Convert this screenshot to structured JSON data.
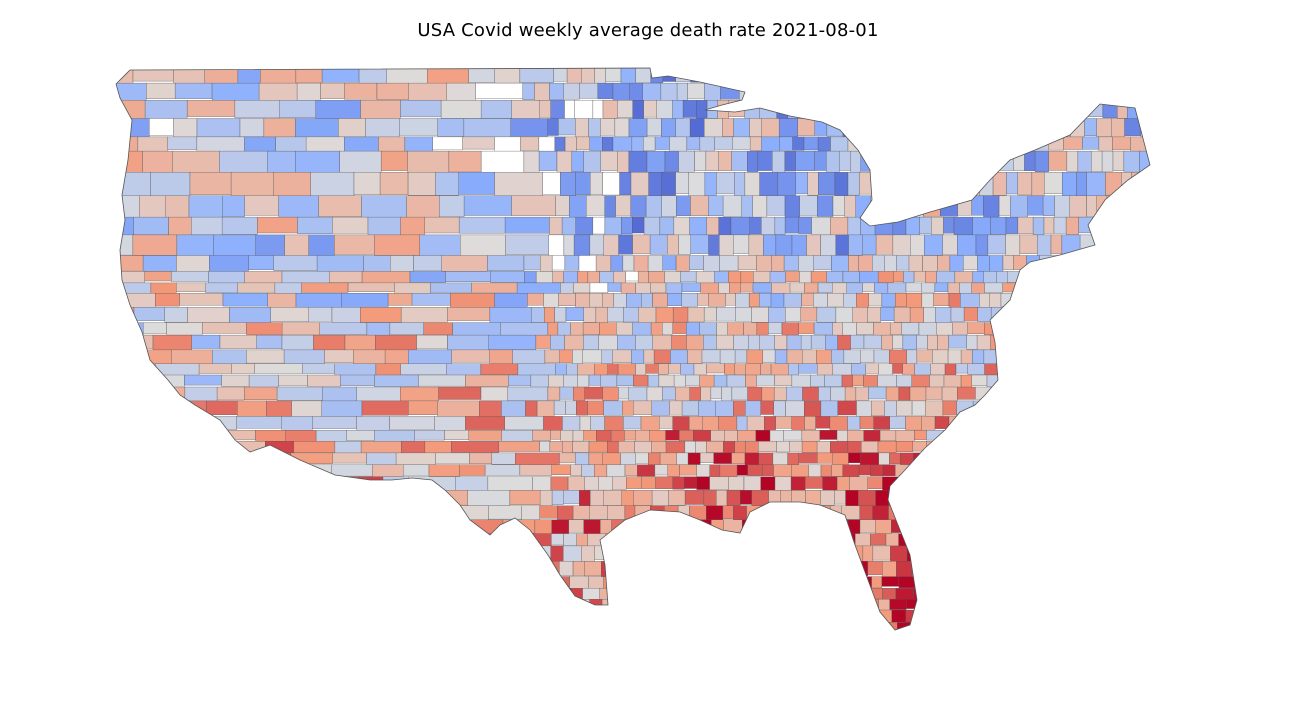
{
  "figure": {
    "title": "USA Covid weekly average death rate 2021-08-01"
  },
  "map": {
    "region": "contiguous-usa",
    "unit": "county",
    "colormap": "coolwarm",
    "colors": {
      "low": "#3b4cc0",
      "mid": "#dddcdc",
      "high": "#b40426",
      "no_data": "#ffffff",
      "border": "#333333"
    }
  }
}
